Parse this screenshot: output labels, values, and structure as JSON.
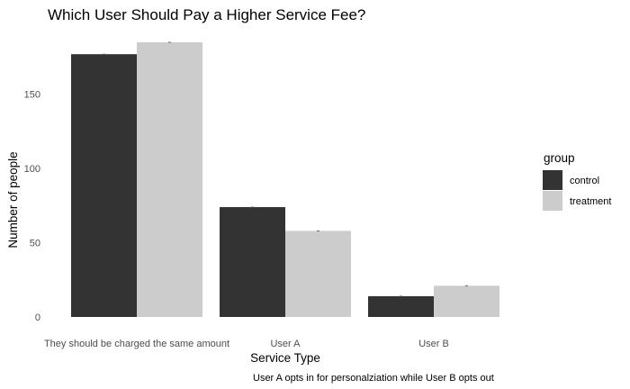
{
  "chart_data": {
    "type": "bar",
    "title": "Which User Should Pay a Higher Service Fee?",
    "xlabel": "Service Type",
    "ylabel": "Number of people",
    "caption": "User A opts in for personalziation while User B opts out",
    "categories": [
      "They should be charged the same amount",
      "User A",
      "User B"
    ],
    "series": [
      {
        "name": "control",
        "values": [
          177,
          74,
          14
        ],
        "color": "#333333"
      },
      {
        "name": "treatment",
        "values": [
          185,
          58,
          21
        ],
        "color": "#cccccc"
      }
    ],
    "ylim": [
      0,
      185
    ],
    "yticks": [
      0,
      50,
      100,
      150
    ],
    "grid": false,
    "legend": {
      "title": "group",
      "placement": "right"
    }
  }
}
